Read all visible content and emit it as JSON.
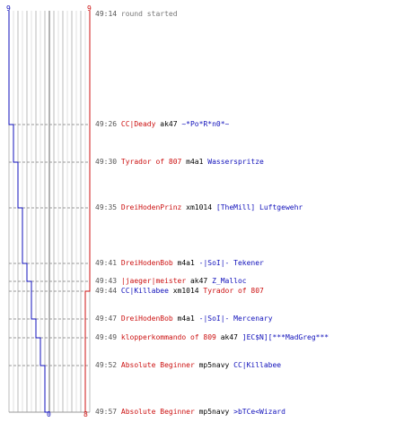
{
  "score": {
    "blue_top": "9",
    "red_top": "9",
    "blue_bottom": "0",
    "red_bottom": "8"
  },
  "colors": {
    "blue_team": "#1111bb",
    "red_team": "#cc1111"
  },
  "events": [
    {
      "time": "49:14",
      "plain": "round started"
    },
    {
      "time": "49:26",
      "killer": "CC|Deady",
      "killer_team": "red",
      "weapon": "ak47",
      "victim": "~*Po*R*n0*~",
      "victim_team": "blue"
    },
    {
      "time": "49:30",
      "killer": "Tyrador of 807",
      "killer_team": "red",
      "weapon": "m4a1",
      "victim": "Wasserspritze",
      "victim_team": "blue"
    },
    {
      "time": "49:35",
      "killer": "DreiHodenPrinz",
      "killer_team": "red",
      "weapon": "xm1014",
      "victim": "[TheMill] Luftgewehr",
      "victim_team": "blue"
    },
    {
      "time": "49:41",
      "killer": "DreiHodenBob",
      "killer_team": "red",
      "weapon": "m4a1",
      "victim": "-|SoI|- Tekener",
      "victim_team": "blue"
    },
    {
      "time": "49:43",
      "killer": "|jaeger|meister",
      "killer_team": "red",
      "weapon": "ak47",
      "victim": "Z_Malloc",
      "victim_team": "blue"
    },
    {
      "time": "49:44",
      "killer": "CC|Killabee",
      "killer_team": "blue",
      "weapon": "xm1014",
      "victim": "Tyrador of 807",
      "victim_team": "red"
    },
    {
      "time": "49:47",
      "killer": "DreiHodenBob",
      "killer_team": "red",
      "weapon": "m4a1",
      "victim": "-|SoI|- Mercenary",
      "victim_team": "blue"
    },
    {
      "time": "49:49",
      "killer": "klopperkommando of 809",
      "killer_team": "red",
      "weapon": "ak47",
      "victim": "]EC$N][***MadGreg***",
      "victim_team": "blue"
    },
    {
      "time": "49:52",
      "killer": "Absolute Beginner",
      "killer_team": "red",
      "weapon": "mp5navy",
      "victim": "CC|Killabee",
      "victim_team": "blue"
    },
    {
      "time": "49:57",
      "killer": "Absolute Beginner",
      "killer_team": "red",
      "weapon": "mp5navy",
      "victim": ">bTCe<Wizard",
      "victim_team": "blue"
    }
  ],
  "alive_steps": {
    "blue": [
      9,
      8,
      7,
      6,
      5,
      4,
      4,
      3,
      2,
      1,
      0
    ],
    "red": [
      9,
      9,
      9,
      9,
      9,
      9,
      8,
      8,
      8,
      8,
      8
    ]
  }
}
